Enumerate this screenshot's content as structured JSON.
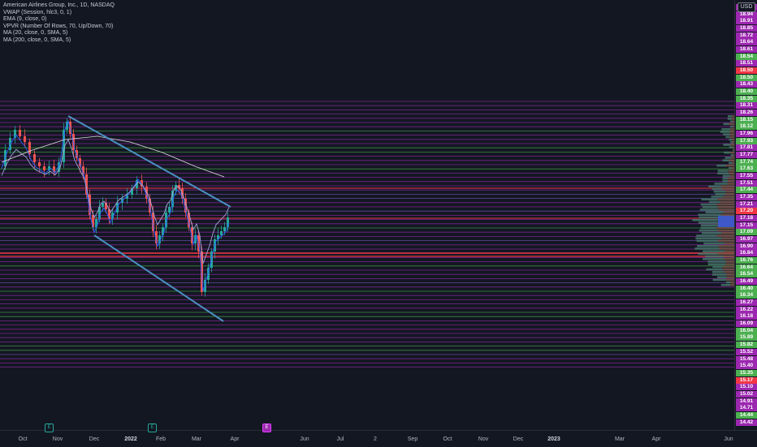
{
  "legend": {
    "title": "American Airlines Group, Inc., 1D, NASDAQ",
    "indicators": [
      "VWAP (Session, hlc3, 0, 1)",
      "EMA (9, close, 0)",
      "VPVR (Number Of Rows, 70, Up/Down, 70)",
      "MA (20, close, 0, SMA, 5)",
      "MA (200, close, 0, SMA, 5)"
    ]
  },
  "currency": "USD",
  "price_labels": [
    {
      "v": "19.02",
      "c": "#9c27b0"
    },
    {
      "v": "18.94",
      "c": "#9c27b0"
    },
    {
      "v": "18.91",
      "c": "#9c27b0"
    },
    {
      "v": "18.85",
      "c": "#9c27b0"
    },
    {
      "v": "18.72",
      "c": "#9c27b0"
    },
    {
      "v": "18.64",
      "c": "#9c27b0"
    },
    {
      "v": "18.61",
      "c": "#9c27b0"
    },
    {
      "v": "18.54",
      "c": "#4caf50"
    },
    {
      "v": "18.51",
      "c": "#9c27b0"
    },
    {
      "v": "18.50",
      "c": "#f23645"
    },
    {
      "v": "18.50",
      "c": "#4caf50"
    },
    {
      "v": "18.43",
      "c": "#9c27b0"
    },
    {
      "v": "18.40",
      "c": "#4caf50"
    },
    {
      "v": "18.35",
      "c": "#4caf50"
    },
    {
      "v": "18.31",
      "c": "#9c27b0"
    },
    {
      "v": "18.26",
      "c": "#9c27b0"
    },
    {
      "v": "18.15",
      "c": "#4caf50"
    },
    {
      "v": "18.12",
      "c": "#4caf50"
    },
    {
      "v": "17.96",
      "c": "#9c27b0"
    },
    {
      "v": "17.93",
      "c": "#4caf50"
    },
    {
      "v": "17.81",
      "c": "#9c27b0"
    },
    {
      "v": "17.77",
      "c": "#9c27b0"
    },
    {
      "v": "17.74",
      "c": "#4caf50"
    },
    {
      "v": "17.63",
      "c": "#4caf50"
    },
    {
      "v": "17.55",
      "c": "#9c27b0"
    },
    {
      "v": "17.51",
      "c": "#9c27b0"
    },
    {
      "v": "17.44",
      "c": "#4caf50"
    },
    {
      "v": "17.35",
      "c": "#9c27b0"
    },
    {
      "v": "17.21",
      "c": "#9c27b0"
    },
    {
      "v": "17.20",
      "c": "#f23645"
    },
    {
      "v": "17.18",
      "c": "#9c27b0"
    },
    {
      "v": "17.15",
      "c": "#9c27b0"
    },
    {
      "v": "17.09",
      "c": "#4caf50"
    },
    {
      "v": "16.97",
      "c": "#9c27b0"
    },
    {
      "v": "16.90",
      "c": "#9c27b0"
    },
    {
      "v": "16.84",
      "c": "#9c27b0"
    },
    {
      "v": "16.76",
      "c": "#4caf50"
    },
    {
      "v": "16.64",
      "c": "#4caf50"
    },
    {
      "v": "16.54",
      "c": "#4caf50"
    },
    {
      "v": "16.49",
      "c": "#9c27b0"
    },
    {
      "v": "16.40",
      "c": "#4caf50"
    },
    {
      "v": "16.34",
      "c": "#4caf50"
    },
    {
      "v": "16.27",
      "c": "#9c27b0"
    },
    {
      "v": "16.22",
      "c": "#9c27b0"
    },
    {
      "v": "16.18",
      "c": "#9c27b0"
    },
    {
      "v": "16.09",
      "c": "#9c27b0"
    },
    {
      "v": "16.04",
      "c": "#4caf50"
    },
    {
      "v": "15.89",
      "c": "#4caf50"
    },
    {
      "v": "15.82",
      "c": "#4caf50"
    },
    {
      "v": "15.52",
      "c": "#9c27b0"
    },
    {
      "v": "15.48",
      "c": "#9c27b0"
    },
    {
      "v": "15.40",
      "c": "#9c27b0"
    },
    {
      "v": "15.35",
      "c": "#4caf50"
    },
    {
      "v": "15.17",
      "c": "#f23645"
    },
    {
      "v": "15.10",
      "c": "#9c27b0"
    },
    {
      "v": "15.02",
      "c": "#9c27b0"
    },
    {
      "v": "14.91",
      "c": "#9c27b0"
    },
    {
      "v": "14.71",
      "c": "#9c27b0"
    },
    {
      "v": "14.44",
      "c": "#4caf50"
    },
    {
      "v": "14.42",
      "c": "#9c27b0"
    }
  ],
  "time_labels": [
    "Oct",
    "Nov",
    "Dec",
    "2022",
    "Feb",
    "Mar",
    "Apr",
    "Jun",
    "Jul",
    "2",
    "Sep",
    "Oct",
    "Nov",
    "Dec",
    "2023",
    "Mar",
    "Apr",
    "Jun"
  ],
  "events": [
    {
      "label": "E",
      "kind": "earnings"
    },
    {
      "label": "E",
      "kind": "earnings"
    },
    {
      "label": "E",
      "kind": "earnings-upcoming"
    }
  ]
}
